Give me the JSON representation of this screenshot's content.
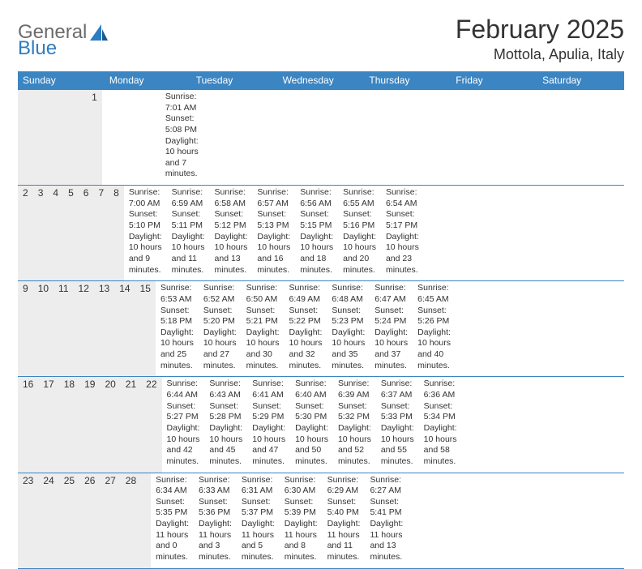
{
  "logo": {
    "text1": "General",
    "text2": "Blue"
  },
  "title": "February 2025",
  "location": "Mottola, Apulia, Italy",
  "colors": {
    "header_band": "#3b85c3",
    "daynum_band": "#ededed",
    "rule": "#3b85c3",
    "text": "#333333",
    "logo_gray": "#6b6b6b",
    "logo_blue": "#2d7cc1",
    "background": "#ffffff"
  },
  "typography": {
    "title_fontsize": 32,
    "location_fontsize": 18,
    "weekday_fontsize": 12,
    "daynum_fontsize": 12,
    "detail_fontsize": 10.5
  },
  "weekdays": [
    "Sunday",
    "Monday",
    "Tuesday",
    "Wednesday",
    "Thursday",
    "Friday",
    "Saturday"
  ],
  "weeks": [
    [
      null,
      null,
      null,
      null,
      null,
      null,
      {
        "n": "1",
        "sunrise": "7:01 AM",
        "sunset": "5:08 PM",
        "daylight": "10 hours and 7 minutes."
      }
    ],
    [
      {
        "n": "2",
        "sunrise": "7:00 AM",
        "sunset": "5:10 PM",
        "daylight": "10 hours and 9 minutes."
      },
      {
        "n": "3",
        "sunrise": "6:59 AM",
        "sunset": "5:11 PM",
        "daylight": "10 hours and 11 minutes."
      },
      {
        "n": "4",
        "sunrise": "6:58 AM",
        "sunset": "5:12 PM",
        "daylight": "10 hours and 13 minutes."
      },
      {
        "n": "5",
        "sunrise": "6:57 AM",
        "sunset": "5:13 PM",
        "daylight": "10 hours and 16 minutes."
      },
      {
        "n": "6",
        "sunrise": "6:56 AM",
        "sunset": "5:15 PM",
        "daylight": "10 hours and 18 minutes."
      },
      {
        "n": "7",
        "sunrise": "6:55 AM",
        "sunset": "5:16 PM",
        "daylight": "10 hours and 20 minutes."
      },
      {
        "n": "8",
        "sunrise": "6:54 AM",
        "sunset": "5:17 PM",
        "daylight": "10 hours and 23 minutes."
      }
    ],
    [
      {
        "n": "9",
        "sunrise": "6:53 AM",
        "sunset": "5:18 PM",
        "daylight": "10 hours and 25 minutes."
      },
      {
        "n": "10",
        "sunrise": "6:52 AM",
        "sunset": "5:20 PM",
        "daylight": "10 hours and 27 minutes."
      },
      {
        "n": "11",
        "sunrise": "6:50 AM",
        "sunset": "5:21 PM",
        "daylight": "10 hours and 30 minutes."
      },
      {
        "n": "12",
        "sunrise": "6:49 AM",
        "sunset": "5:22 PM",
        "daylight": "10 hours and 32 minutes."
      },
      {
        "n": "13",
        "sunrise": "6:48 AM",
        "sunset": "5:23 PM",
        "daylight": "10 hours and 35 minutes."
      },
      {
        "n": "14",
        "sunrise": "6:47 AM",
        "sunset": "5:24 PM",
        "daylight": "10 hours and 37 minutes."
      },
      {
        "n": "15",
        "sunrise": "6:45 AM",
        "sunset": "5:26 PM",
        "daylight": "10 hours and 40 minutes."
      }
    ],
    [
      {
        "n": "16",
        "sunrise": "6:44 AM",
        "sunset": "5:27 PM",
        "daylight": "10 hours and 42 minutes."
      },
      {
        "n": "17",
        "sunrise": "6:43 AM",
        "sunset": "5:28 PM",
        "daylight": "10 hours and 45 minutes."
      },
      {
        "n": "18",
        "sunrise": "6:41 AM",
        "sunset": "5:29 PM",
        "daylight": "10 hours and 47 minutes."
      },
      {
        "n": "19",
        "sunrise": "6:40 AM",
        "sunset": "5:30 PM",
        "daylight": "10 hours and 50 minutes."
      },
      {
        "n": "20",
        "sunrise": "6:39 AM",
        "sunset": "5:32 PM",
        "daylight": "10 hours and 52 minutes."
      },
      {
        "n": "21",
        "sunrise": "6:37 AM",
        "sunset": "5:33 PM",
        "daylight": "10 hours and 55 minutes."
      },
      {
        "n": "22",
        "sunrise": "6:36 AM",
        "sunset": "5:34 PM",
        "daylight": "10 hours and 58 minutes."
      }
    ],
    [
      {
        "n": "23",
        "sunrise": "6:34 AM",
        "sunset": "5:35 PM",
        "daylight": "11 hours and 0 minutes."
      },
      {
        "n": "24",
        "sunrise": "6:33 AM",
        "sunset": "5:36 PM",
        "daylight": "11 hours and 3 minutes."
      },
      {
        "n": "25",
        "sunrise": "6:31 AM",
        "sunset": "5:37 PM",
        "daylight": "11 hours and 5 minutes."
      },
      {
        "n": "26",
        "sunrise": "6:30 AM",
        "sunset": "5:39 PM",
        "daylight": "11 hours and 8 minutes."
      },
      {
        "n": "27",
        "sunrise": "6:29 AM",
        "sunset": "5:40 PM",
        "daylight": "11 hours and 11 minutes."
      },
      {
        "n": "28",
        "sunrise": "6:27 AM",
        "sunset": "5:41 PM",
        "daylight": "11 hours and 13 minutes."
      },
      null
    ]
  ],
  "labels": {
    "sunrise_prefix": "Sunrise: ",
    "sunset_prefix": "Sunset: ",
    "daylight_prefix": "Daylight: "
  }
}
